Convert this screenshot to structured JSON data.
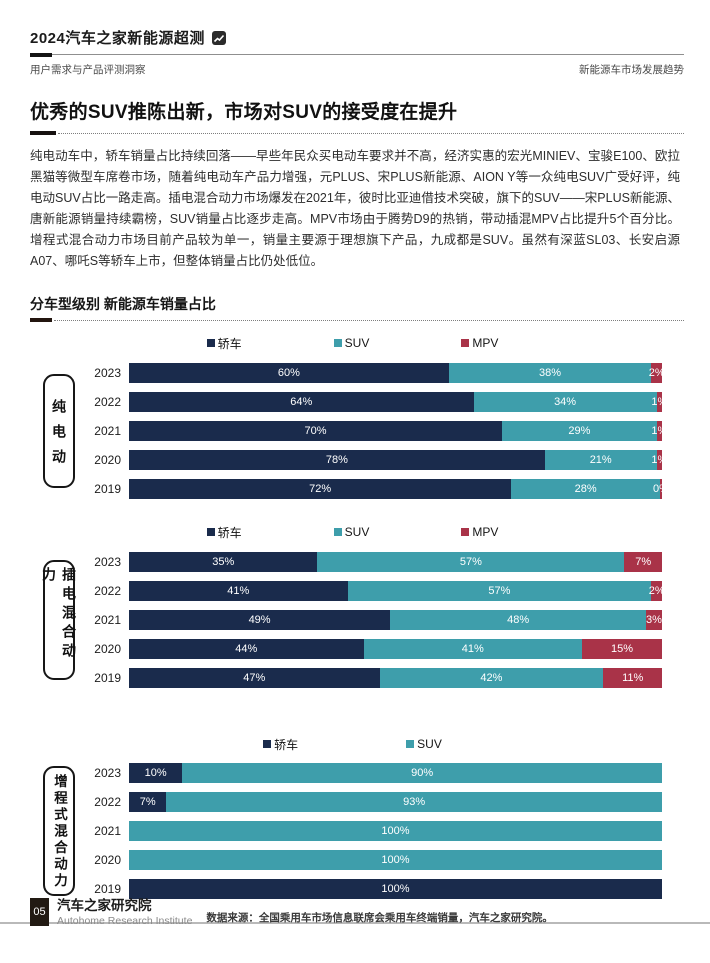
{
  "header": {
    "brand": "2024汽车之家新能源超测",
    "brand_icon": "rising-line-logo-icon",
    "left_subtitle": "用户需求与产品评测洞察",
    "right_subtitle": "新能源车市场发展趋势"
  },
  "title": "优秀的SUV推陈出新，市场对SUV的接受度在提升",
  "paragraph": "纯电动车中，轿车销量占比持续回落——早些年民众买电动车要求并不高，经济实惠的宏光MINIEV、宝骏E100、欧拉黑猫等微型车席卷市场，随着纯电动车产品力增强，元PLUS、宋PLUS新能源、AION Y等一众纯电SUV广受好评，纯电动SUV占比一路走高。插电混合动力市场爆发在2021年，彼时比亚迪借技术突破，旗下的SUV——宋PLUS新能源、唐新能源销量持续霸榜，SUV销量占比逐步走高。MPV市场由于腾势D9的热销，带动插混MPV占比提升5个百分比。增程式混合动力市场目前产品较为单一，销量主要源于理想旗下产品，九成都是SUV。虽然有深蓝SL03、长安启源A07、哪吒S等轿车上市，但整体销量占比仍处低位。",
  "section_title": "分车型级别 新能源车销量占比",
  "colors": {
    "sedan": "#1A2B4C",
    "suv": "#3E9EAB",
    "mpv": "#A93348"
  },
  "chart_data": [
    {
      "type": "bar",
      "orientation": "horizontal-stacked",
      "group_label": "纯电动",
      "unit": "%",
      "xlim": [
        0,
        100
      ],
      "legend_position": "top",
      "categories": [
        "2023",
        "2022",
        "2021",
        "2020",
        "2019"
      ],
      "series": [
        {
          "name": "轿车",
          "key": "sedan",
          "values": [
            60,
            64,
            70,
            78,
            72
          ],
          "labels": [
            "60%",
            "64%",
            "70%",
            "78%",
            "72%"
          ]
        },
        {
          "name": "SUV",
          "key": "suv",
          "values": [
            38,
            34,
            29,
            21,
            28
          ],
          "labels": [
            "38%",
            "34%",
            "29%",
            "21%",
            "28%"
          ]
        },
        {
          "name": "MPV",
          "key": "mpv",
          "values": [
            2,
            1,
            1,
            1,
            0
          ],
          "labels": [
            "2%",
            "1%",
            "1%",
            "1%",
            "0%"
          ]
        }
      ]
    },
    {
      "type": "bar",
      "orientation": "horizontal-stacked",
      "group_label": "插电混合动力",
      "unit": "%",
      "xlim": [
        0,
        100
      ],
      "legend_position": "top",
      "categories": [
        "2023",
        "2022",
        "2021",
        "2020",
        "2019"
      ],
      "series": [
        {
          "name": "轿车",
          "key": "sedan",
          "values": [
            35,
            41,
            49,
            44,
            47
          ],
          "labels": [
            "35%",
            "41%",
            "49%",
            "44%",
            "47%"
          ]
        },
        {
          "name": "SUV",
          "key": "suv",
          "values": [
            57,
            57,
            48,
            41,
            42
          ],
          "labels": [
            "57%",
            "57%",
            "48%",
            "41%",
            "42%"
          ]
        },
        {
          "name": "MPV",
          "key": "mpv",
          "values": [
            7,
            2,
            3,
            15,
            11
          ],
          "labels": [
            "7%",
            "2%",
            "3%",
            "15%",
            "11%"
          ]
        }
      ]
    },
    {
      "type": "bar",
      "orientation": "horizontal-stacked",
      "group_label": "增程式混合动力",
      "unit": "%",
      "xlim": [
        0,
        100
      ],
      "legend_position": "top",
      "categories": [
        "2023",
        "2022",
        "2021",
        "2020",
        "2019"
      ],
      "series": [
        {
          "name": "轿车",
          "key": "sedan",
          "values": [
            10,
            7,
            0,
            0,
            100
          ],
          "labels": [
            "10%",
            "7%",
            "",
            "",
            "100%"
          ]
        },
        {
          "name": "SUV",
          "key": "suv",
          "values": [
            90,
            93,
            100,
            100,
            0
          ],
          "labels": [
            "90%",
            "93%",
            "100%",
            "100%",
            ""
          ]
        }
      ]
    }
  ],
  "footer": {
    "page_number": "05",
    "org_cn": "汽车之家研究院",
    "org_en": "Autohome Research Institute",
    "source": "数据来源：全国乘用车市场信息联席会乘用车终端销量，汽车之家研究院。"
  }
}
